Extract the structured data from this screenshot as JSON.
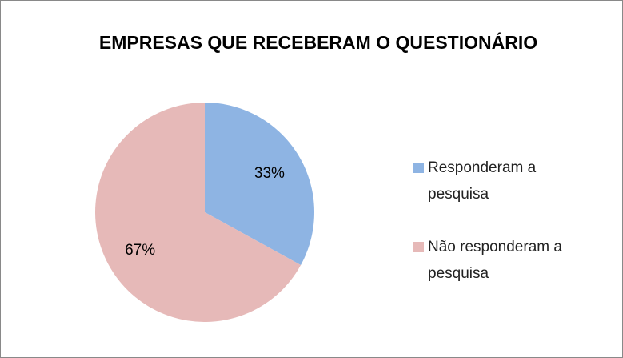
{
  "chart_data": {
    "type": "pie",
    "title": "EMPRESAS  QUE RECEBERAM O QUESTIONÁRIO",
    "categories": [
      "Responderam a pesquisa",
      "Não responderam a pesquisa"
    ],
    "values": [
      33,
      67
    ],
    "value_labels": [
      "33%",
      "67%"
    ],
    "colors": [
      "#8eb4e3",
      "#e6b9b8"
    ],
    "legend": "right"
  }
}
